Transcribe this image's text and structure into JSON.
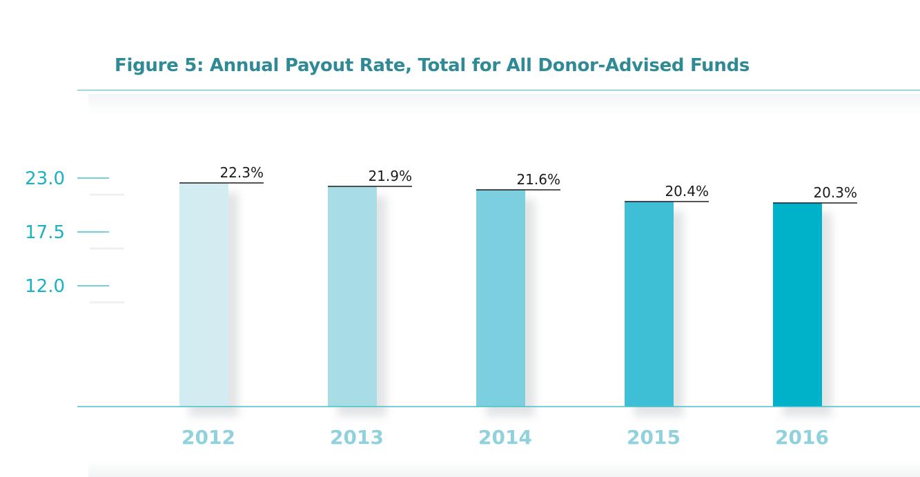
{
  "chart_data": {
    "type": "bar",
    "title": "Figure 5: Annual Payout Rate, Total for All Donor-Advised Funds",
    "categories": [
      "2012",
      "2013",
      "2014",
      "2015",
      "2016"
    ],
    "values": [
      22.3,
      21.9,
      21.6,
      20.4,
      20.3
    ],
    "data_labels": [
      "22.3%",
      "21.9%",
      "21.6%",
      "20.4%",
      "20.3%"
    ],
    "y_ticks": [
      23.0,
      17.5,
      12.0
    ],
    "y_tick_labels": [
      "23.0",
      "17.5",
      "12.0"
    ],
    "xlabel": "",
    "ylabel": "",
    "ylim": [
      0,
      23.6
    ],
    "grid": false,
    "legend": "none",
    "bar_colors": [
      "#d2ecf1",
      "#a9dde5",
      "#7ccfdf",
      "#3fbfd5",
      "#00b2c9"
    ],
    "colors": {
      "title": "#2f8a96",
      "axis_teal": "#47bfcd",
      "tick_label": "#1bb0c6",
      "category_label": "#8fd1dc",
      "data_label": "#1a1a1a"
    }
  }
}
